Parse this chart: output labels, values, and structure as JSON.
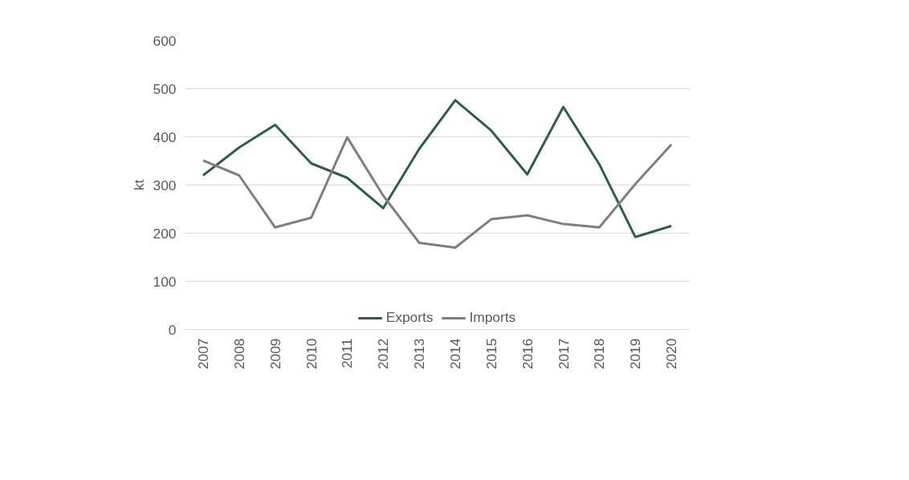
{
  "chart_data": {
    "type": "line",
    "ylabel": "kt",
    "categories": [
      "2007",
      "2008",
      "2009",
      "2010",
      "2011",
      "2012",
      "2013",
      "2014",
      "2015",
      "2016",
      "2017",
      "2018",
      "2019",
      "2020"
    ],
    "series": [
      {
        "name": "Exports",
        "color": "#2e5e4e",
        "values": [
          320,
          378,
          425,
          345,
          315,
          252,
          375,
          476,
          413,
          322,
          462,
          343,
          192,
          215
        ]
      },
      {
        "name": "Imports",
        "color": "#7f7f7f",
        "values": [
          351,
          320,
          212,
          232,
          399,
          278,
          180,
          170,
          229,
          237,
          219,
          212,
          302,
          384
        ]
      }
    ],
    "ylim": [
      0,
      600
    ],
    "yticks": [
      0,
      100,
      200,
      300,
      400,
      500,
      600
    ],
    "grid": "y",
    "legend": "bottom",
    "line_style": "solid",
    "marker": "none"
  }
}
